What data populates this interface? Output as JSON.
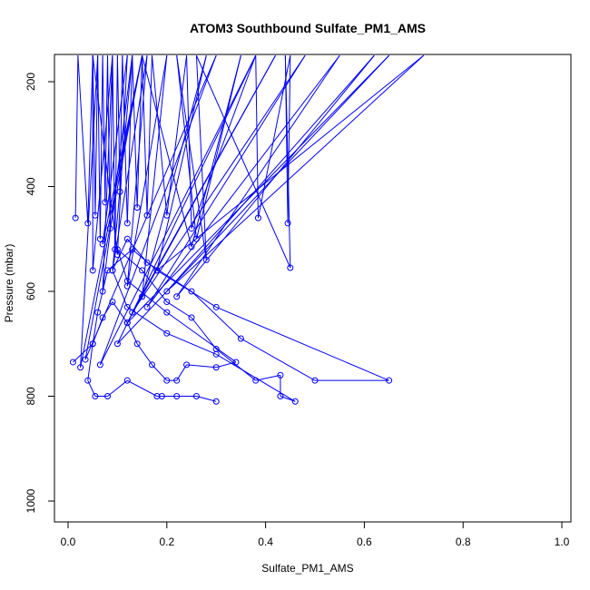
{
  "chart_data": {
    "type": "line",
    "title": "ATOM3 Southbound Sulfate_PM1_AMS",
    "xlabel": "Sulfate_PM1_AMS",
    "ylabel": "Pressure (mbar)",
    "xlim": [
      0,
      1
    ],
    "ylim": [
      1030,
      150
    ],
    "y_reversed": true,
    "x_ticks": [
      0.0,
      0.2,
      0.4,
      0.6,
      0.8,
      1.0
    ],
    "x_tick_labels": [
      "0.0",
      "0.2",
      "0.4",
      "0.6",
      "0.8",
      "1.0"
    ],
    "y_ticks": [
      200,
      400,
      600,
      800,
      1000
    ],
    "y_tick_labels": [
      "200",
      "400",
      "600",
      "800",
      "1000"
    ],
    "grid": false,
    "legend": "none",
    "colors": {
      "series": "#0000ff"
    },
    "series": [
      {
        "values_note": "",
        "points": [
          [
            0.015,
            460
          ],
          [
            0.02,
            150
          ],
          [
            0.04,
            470
          ],
          [
            0.05,
            150
          ],
          [
            0.055,
            455
          ],
          [
            0.06,
            150
          ],
          [
            0.065,
            500
          ],
          [
            0.07,
            150
          ],
          [
            0.075,
            430
          ],
          [
            0.08,
            150
          ],
          [
            0.085,
            480
          ],
          [
            0.09,
            150
          ],
          [
            0.095,
            520
          ],
          [
            0.1,
            150
          ],
          [
            0.105,
            410
          ],
          [
            0.11,
            150
          ],
          [
            0.12,
            470
          ],
          [
            0.13,
            150
          ],
          [
            0.14,
            440
          ],
          [
            0.15,
            150
          ],
          [
            0.16,
            455
          ],
          [
            0.17,
            150
          ],
          [
            0.2,
            455
          ],
          [
            0.24,
            150
          ],
          [
            0.25,
            480
          ],
          [
            0.38,
            150
          ],
          [
            0.385,
            460
          ],
          [
            0.45,
            150
          ],
          [
            0.445,
            470
          ],
          [
            0.44,
            150
          ],
          [
            0.45,
            555
          ],
          [
            0.26,
            150
          ],
          [
            0.28,
            540
          ],
          [
            0.22,
            150
          ],
          [
            0.26,
            500
          ],
          [
            0.35,
            150
          ],
          [
            0.25,
            515
          ],
          [
            0.15,
            150
          ],
          [
            0.07,
            510
          ],
          [
            0.12,
            150
          ],
          [
            0.1,
            530
          ],
          [
            0.05,
            150
          ],
          [
            0.05,
            560
          ],
          [
            0.09,
            150
          ],
          [
            0.07,
            600
          ],
          [
            0.13,
            150
          ],
          [
            0.09,
            560
          ],
          [
            0.16,
            150
          ],
          [
            0.12,
            590
          ],
          [
            0.2,
            150
          ],
          [
            0.15,
            610
          ],
          [
            0.28,
            150
          ],
          [
            0.18,
            560
          ],
          [
            0.72,
            150
          ],
          [
            0.2,
            600
          ],
          [
            0.62,
            150
          ],
          [
            0.22,
            610
          ],
          [
            0.55,
            150
          ],
          [
            0.16,
            630
          ],
          [
            0.48,
            150
          ],
          [
            0.13,
            640
          ],
          [
            0.42,
            150
          ],
          [
            0.12,
            660
          ],
          [
            0.65,
            150
          ],
          [
            0.1,
            700
          ],
          [
            0.38,
            150
          ],
          [
            0.065,
            740
          ],
          [
            0.3,
            150
          ],
          [
            0.035,
            730
          ],
          [
            0.15,
            150
          ],
          [
            0.025,
            745
          ],
          [
            0.06,
            150
          ]
        ]
      },
      {
        "points": [
          [
            0.01,
            735
          ],
          [
            0.05,
            700
          ],
          [
            0.07,
            650
          ],
          [
            0.09,
            620
          ],
          [
            0.12,
            660
          ],
          [
            0.14,
            700
          ],
          [
            0.17,
            740
          ],
          [
            0.2,
            770
          ],
          [
            0.22,
            770
          ],
          [
            0.24,
            740
          ],
          [
            0.3,
            745
          ],
          [
            0.34,
            735
          ],
          [
            0.2,
            640
          ],
          [
            0.12,
            580
          ],
          [
            0.1,
            520
          ],
          [
            0.15,
            560
          ],
          [
            0.2,
            620
          ],
          [
            0.25,
            650
          ],
          [
            0.3,
            710
          ],
          [
            0.38,
            770
          ],
          [
            0.43,
            760
          ],
          [
            0.43,
            800
          ],
          [
            0.46,
            810
          ],
          [
            0.3,
            720
          ],
          [
            0.2,
            680
          ],
          [
            0.12,
            630
          ],
          [
            0.09,
            560
          ],
          [
            0.12,
            500
          ],
          [
            0.16,
            545
          ],
          [
            0.25,
            600
          ],
          [
            0.35,
            690
          ],
          [
            0.5,
            770
          ],
          [
            0.65,
            770
          ],
          [
            0.3,
            630
          ],
          [
            0.18,
            560
          ],
          [
            0.13,
            520
          ],
          [
            0.08,
            560
          ],
          [
            0.06,
            640
          ],
          [
            0.05,
            700
          ],
          [
            0.04,
            770
          ],
          [
            0.055,
            800
          ],
          [
            0.08,
            800
          ],
          [
            0.12,
            770
          ],
          [
            0.18,
            800
          ],
          [
            0.19,
            800
          ],
          [
            0.22,
            800
          ],
          [
            0.26,
            800
          ],
          [
            0.3,
            810
          ]
        ]
      }
    ]
  }
}
